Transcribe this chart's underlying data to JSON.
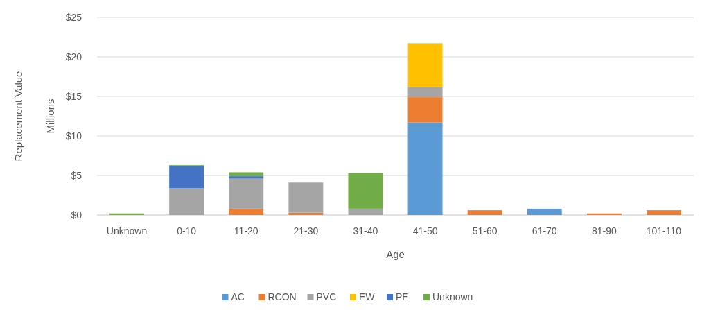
{
  "chart_data": {
    "type": "bar",
    "stacked": true,
    "xlabel": "Age",
    "ylabel": "Replacement Value",
    "y2label": "Millions",
    "categories": [
      "Unknown",
      "0-10",
      "11-20",
      "21-30",
      "31-40",
      "41-50",
      "51-60",
      "61-70",
      "81-90",
      "101-110"
    ],
    "series": [
      {
        "name": "AC",
        "color": "#5b9bd5",
        "values": [
          null,
          null,
          null,
          null,
          null,
          11.7,
          null,
          0.8,
          null,
          null
        ]
      },
      {
        "name": "RCON",
        "color": "#ed7d31",
        "values": [
          null,
          null,
          0.8,
          0.3,
          null,
          3.2,
          0.6,
          null,
          0.2,
          0.6
        ]
      },
      {
        "name": "PVC",
        "color": "#a5a5a5",
        "values": [
          null,
          3.4,
          3.8,
          3.8,
          0.8,
          1.3,
          null,
          null,
          null,
          null
        ]
      },
      {
        "name": "EW",
        "color": "#ffc000",
        "values": [
          null,
          null,
          null,
          null,
          null,
          5.4,
          null,
          null,
          null,
          null
        ]
      },
      {
        "name": "PE",
        "color": "#4472c4",
        "values": [
          null,
          2.8,
          0.3,
          null,
          null,
          null,
          null,
          null,
          null,
          null
        ]
      },
      {
        "name": "Unknown",
        "color": "#70ad47",
        "values": [
          0.2,
          0.1,
          0.5,
          null,
          4.5,
          0.1,
          null,
          null,
          null,
          null
        ]
      }
    ],
    "ylim": [
      0,
      25
    ],
    "yticks": [
      {
        "value": 0,
        "label": "$0"
      },
      {
        "value": 5,
        "label": "$5"
      },
      {
        "value": 10,
        "label": "$10"
      },
      {
        "value": 15,
        "label": "$15"
      },
      {
        "value": 20,
        "label": "$20"
      },
      {
        "value": 25,
        "label": "$25"
      }
    ],
    "grid": "y",
    "legend": "bottom"
  }
}
